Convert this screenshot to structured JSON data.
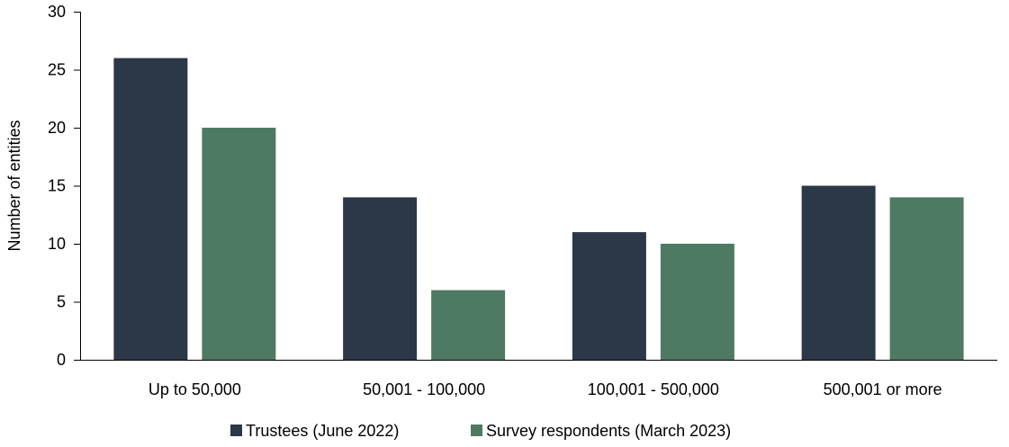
{
  "chart_data": {
    "type": "bar",
    "title": "",
    "xlabel": "",
    "ylabel": "Number of entities",
    "categories": [
      "Up to 50,000",
      "50,001 - 100,000",
      "100,001 - 500,000",
      "500,001 or more"
    ],
    "series": [
      {
        "name": "Trustees (June 2022)",
        "values": [
          26,
          14,
          11,
          15
        ],
        "color": "#2c3748"
      },
      {
        "name": "Survey respondents (March 2023)",
        "values": [
          20,
          6,
          10,
          14
        ],
        "color": "#4e7a63"
      }
    ],
    "ylim": [
      0,
      30
    ],
    "yticks": [
      0,
      5,
      10,
      15,
      20,
      25,
      30
    ],
    "grid": false,
    "legend_position": "bottom"
  }
}
